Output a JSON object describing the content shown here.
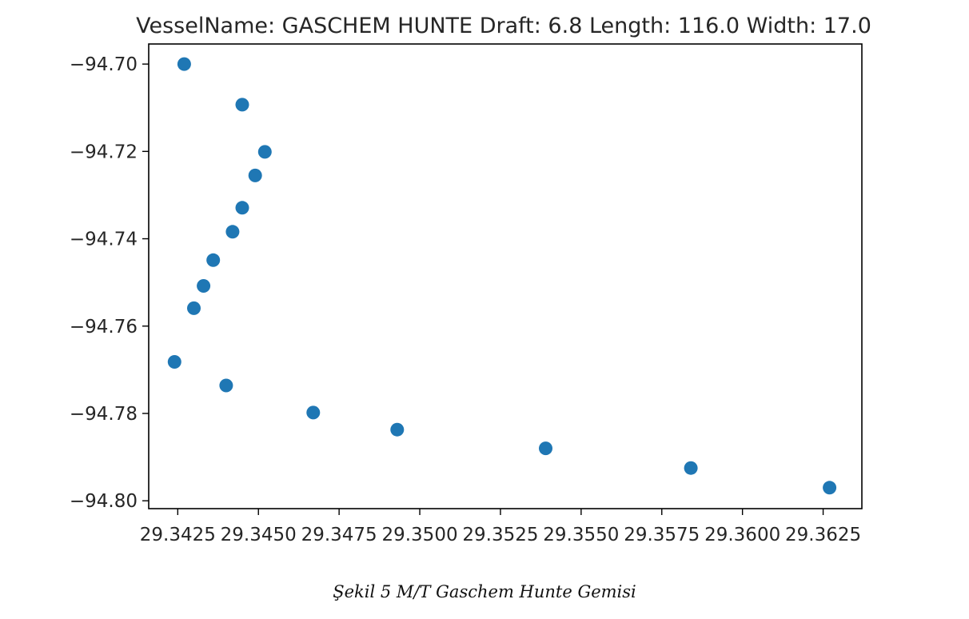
{
  "chart_data": {
    "type": "scatter",
    "title": "VesselName: GASCHEM HUNTE Draft: 6.8 Length: 116.0 Width: 17.0",
    "xlabel": "",
    "ylabel": "",
    "xlim": [
      29.3416,
      29.3637
    ],
    "ylim": [
      -94.8018,
      -94.6954
    ],
    "xticks": [
      29.3425,
      29.345,
      29.3475,
      29.35,
      29.3525,
      29.355,
      29.3575,
      29.36,
      29.3625
    ],
    "xtick_labels": [
      "29.3425",
      "29.3450",
      "29.3475",
      "29.3500",
      "29.3525",
      "29.3550",
      "29.3575",
      "29.3600",
      "29.3625"
    ],
    "yticks": [
      -94.7,
      -94.72,
      -94.74,
      -94.76,
      -94.78,
      -94.8
    ],
    "ytick_labels": [
      "−94.70",
      "−94.72",
      "−94.74",
      "−94.76",
      "−94.78",
      "−94.80"
    ],
    "grid": false,
    "color": "#1f77b4",
    "points": [
      {
        "x": 29.3427,
        "y": -94.7
      },
      {
        "x": 29.3445,
        "y": -94.7093
      },
      {
        "x": 29.3452,
        "y": -94.7201
      },
      {
        "x": 29.3449,
        "y": -94.7255
      },
      {
        "x": 29.3445,
        "y": -94.7329
      },
      {
        "x": 29.3442,
        "y": -94.7384
      },
      {
        "x": 29.3436,
        "y": -94.7449
      },
      {
        "x": 29.3433,
        "y": -94.7508
      },
      {
        "x": 29.343,
        "y": -94.7559
      },
      {
        "x": 29.3424,
        "y": -94.7682
      },
      {
        "x": 29.344,
        "y": -94.7736
      },
      {
        "x": 29.3467,
        "y": -94.7798
      },
      {
        "x": 29.3493,
        "y": -94.7837
      },
      {
        "x": 29.3539,
        "y": -94.788
      },
      {
        "x": 29.3584,
        "y": -94.7925
      },
      {
        "x": 29.3627,
        "y": -94.797
      }
    ]
  },
  "caption": "Şekil 5 M/T Gaschem Hunte Gemisi"
}
